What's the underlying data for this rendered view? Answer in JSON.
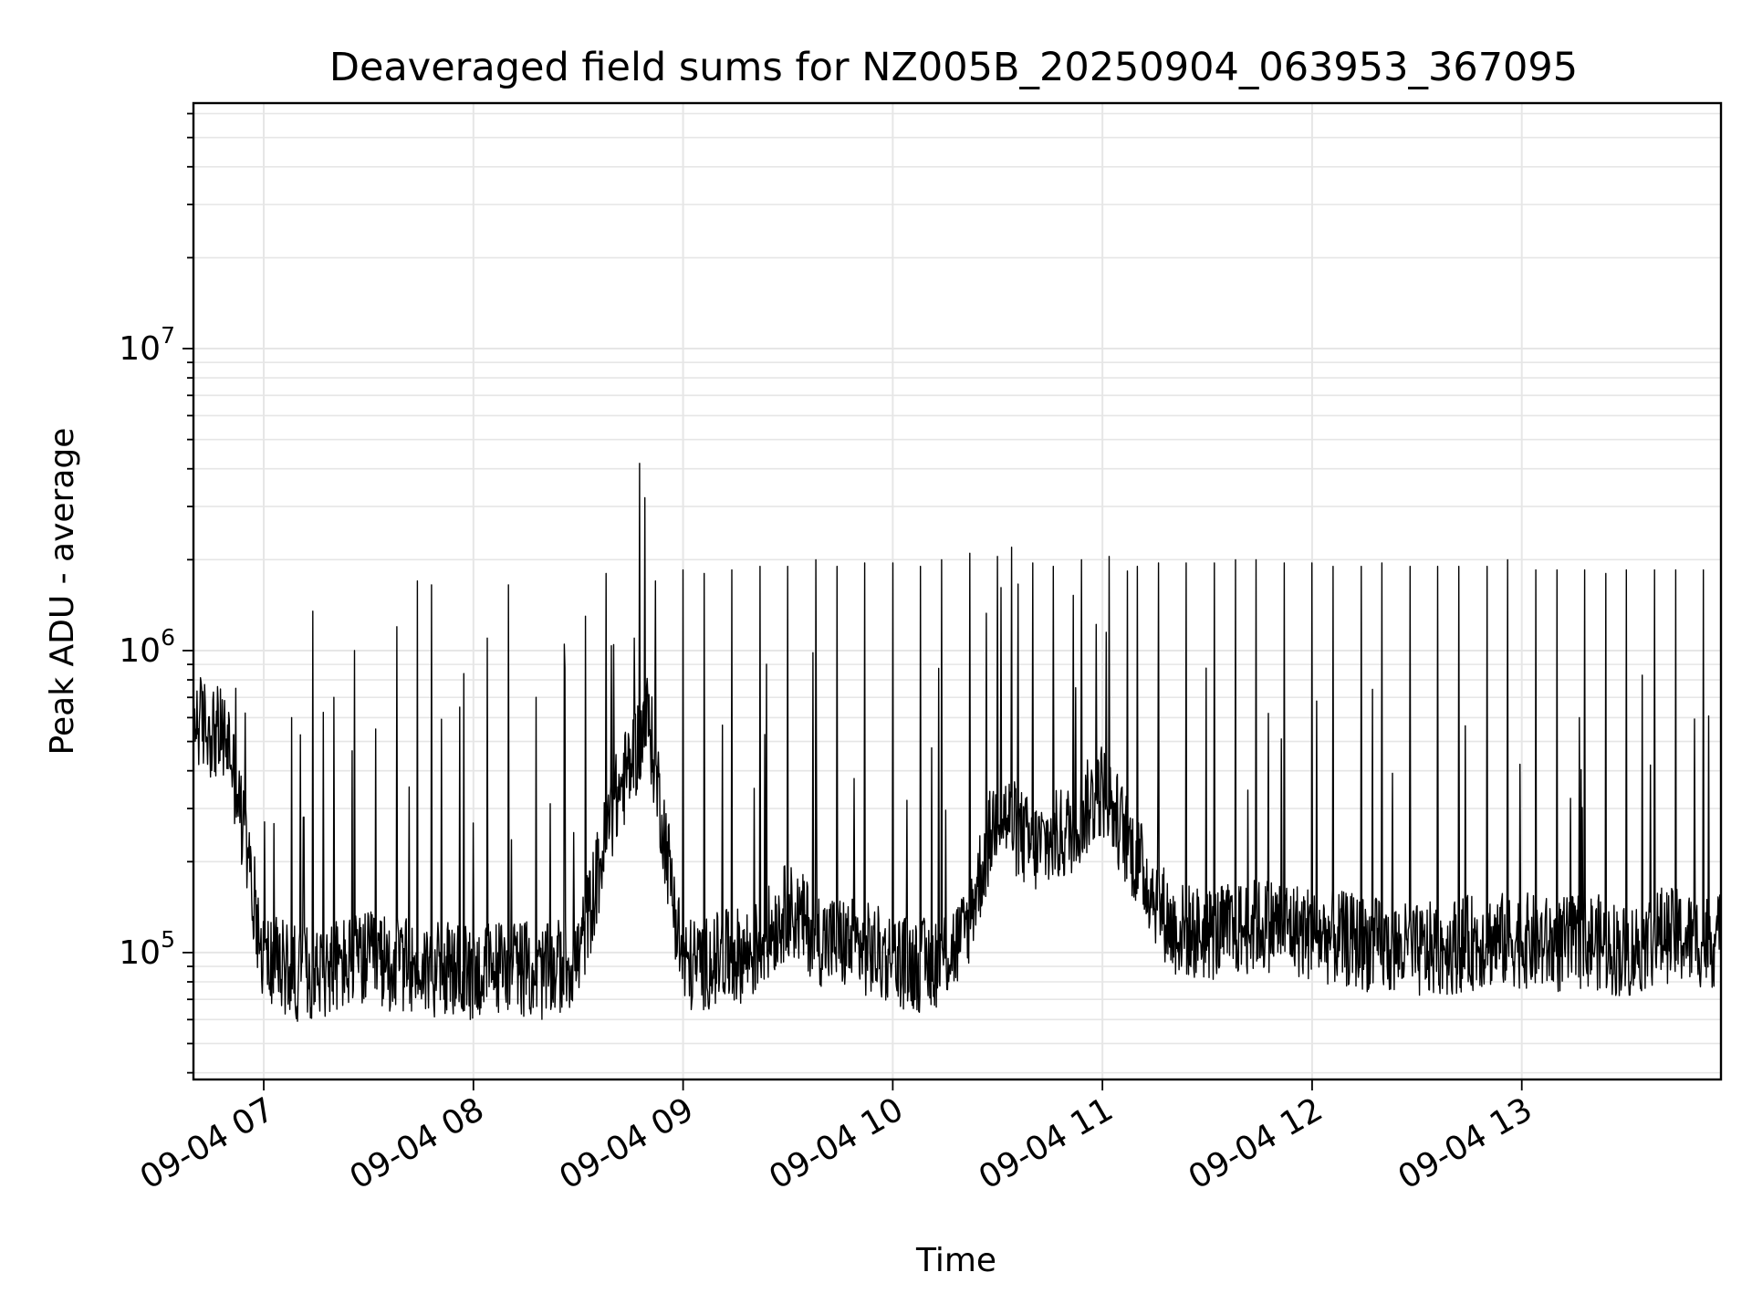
{
  "chart_data": {
    "type": "line",
    "title": "Deaveraged field sums for NZ005B_20250904_063953_367095",
    "xlabel": "Time",
    "ylabel": "Peak ADU - average",
    "y_scale": "log",
    "ylim": [
      38000,
      65000000
    ],
    "xlim": [
      "2025-09-04 06:39:53",
      "2025-09-04 13:57:00"
    ],
    "grid": true,
    "line_color": "#000000",
    "grid_color": "#e6e6e6",
    "x_ticks": [
      {
        "value": "2025-09-04 07:00",
        "label": "09-04 07"
      },
      {
        "value": "2025-09-04 08:00",
        "label": "09-04 08"
      },
      {
        "value": "2025-09-04 09:00",
        "label": "09-04 09"
      },
      {
        "value": "2025-09-04 10:00",
        "label": "09-04 10"
      },
      {
        "value": "2025-09-04 11:00",
        "label": "09-04 11"
      },
      {
        "value": "2025-09-04 12:00",
        "label": "09-04 12"
      },
      {
        "value": "2025-09-04 13:00",
        "label": "09-04 13"
      }
    ],
    "y_ticks": [
      {
        "value": 100000,
        "base": "10",
        "exp": "5"
      },
      {
        "value": 1000000,
        "base": "10",
        "exp": "6"
      },
      {
        "value": 10000000,
        "base": "10",
        "exp": "7"
      }
    ],
    "series": [
      {
        "x": [
          "2025-09-04 06:40",
          "2025-09-04 06:50",
          "2025-09-04 07:00",
          "2025-09-04 07:10",
          "2025-09-04 07:20",
          "2025-09-04 07:30",
          "2025-09-04 07:40",
          "2025-09-04 07:50",
          "2025-09-04 08:00",
          "2025-09-04 08:10",
          "2025-09-04 08:20",
          "2025-09-04 08:30",
          "2025-09-04 08:40",
          "2025-09-04 08:50",
          "2025-09-04 09:00",
          "2025-09-04 09:10",
          "2025-09-04 09:20",
          "2025-09-04 09:30",
          "2025-09-04 09:40",
          "2025-09-04 09:50",
          "2025-09-04 10:00",
          "2025-09-04 10:10",
          "2025-09-04 10:20",
          "2025-09-04 10:30",
          "2025-09-04 10:40",
          "2025-09-04 10:50",
          "2025-09-04 11:00",
          "2025-09-04 11:10",
          "2025-09-04 11:20",
          "2025-09-04 11:30",
          "2025-09-04 11:40",
          "2025-09-04 11:50",
          "2025-09-04 12:00",
          "2025-09-04 12:10",
          "2025-09-04 12:20",
          "2025-09-04 12:30",
          "2025-09-04 12:40",
          "2025-09-04 12:50",
          "2025-09-04 13:00",
          "2025-09-04 13:10",
          "2025-09-04 13:20",
          "2025-09-04 13:30",
          "2025-09-04 13:40",
          "2025-09-04 13:50"
        ],
        "values": [
          600000,
          500000,
          95000,
          85000,
          90000,
          95000,
          90000,
          88000,
          85000,
          92000,
          85000,
          95000,
          300000,
          600000,
          90000,
          95000,
          100000,
          140000,
          110000,
          105000,
          95000,
          90000,
          110000,
          300000,
          220000,
          250000,
          350000,
          200000,
          120000,
          115000,
          120000,
          125000,
          115000,
          110000,
          105000,
          100000,
          105000,
          110000,
          110000,
          105000,
          110000,
          100000,
          115000,
          110000
        ],
        "spikes": [
          [
            "2025-09-04 06:52",
            750000
          ],
          [
            "2025-09-04 07:08",
            600000
          ],
          [
            "2025-09-04 07:14",
            1350000
          ],
          [
            "2025-09-04 07:20",
            700000
          ],
          [
            "2025-09-04 07:26",
            1000000
          ],
          [
            "2025-09-04 07:32",
            550000
          ],
          [
            "2025-09-04 07:38",
            1200000
          ],
          [
            "2025-09-04 07:44",
            1700000
          ],
          [
            "2025-09-04 07:48",
            1650000
          ],
          [
            "2025-09-04 07:56",
            650000
          ],
          [
            "2025-09-04 08:04",
            1100000
          ],
          [
            "2025-09-04 08:10",
            1650000
          ],
          [
            "2025-09-04 08:18",
            700000
          ],
          [
            "2025-09-04 08:26",
            1050000
          ],
          [
            "2025-09-04 08:32",
            1300000
          ],
          [
            "2025-09-04 08:38",
            1800000
          ],
          [
            "2025-09-04 08:46",
            1100000
          ],
          [
            "2025-09-04 08:52",
            1700000
          ],
          [
            "2025-09-04 09:00",
            1850000
          ],
          [
            "2025-09-04 09:06",
            1800000
          ],
          [
            "2025-09-04 09:14",
            1850000
          ],
          [
            "2025-09-04 09:22",
            1900000
          ],
          [
            "2025-09-04 09:30",
            1900000
          ],
          [
            "2025-09-04 09:38",
            2000000
          ],
          [
            "2025-09-04 09:44",
            1900000
          ],
          [
            "2025-09-04 09:52",
            1950000
          ],
          [
            "2025-09-04 10:00",
            1950000
          ],
          [
            "2025-09-04 10:08",
            1900000
          ],
          [
            "2025-09-04 10:14",
            2000000
          ],
          [
            "2025-09-04 10:22",
            2100000
          ],
          [
            "2025-09-04 10:30",
            2050000
          ],
          [
            "2025-09-04 10:34",
            2200000
          ],
          [
            "2025-09-04 10:40",
            1950000
          ],
          [
            "2025-09-04 10:46",
            1900000
          ],
          [
            "2025-09-04 10:54",
            2000000
          ],
          [
            "2025-09-04 11:02",
            2050000
          ],
          [
            "2025-09-04 11:10",
            1900000
          ],
          [
            "2025-09-04 11:16",
            1950000
          ],
          [
            "2025-09-04 11:24",
            1950000
          ],
          [
            "2025-09-04 11:32",
            1950000
          ],
          [
            "2025-09-04 11:38",
            2000000
          ],
          [
            "2025-09-04 11:44",
            2000000
          ],
          [
            "2025-09-04 11:52",
            1950000
          ],
          [
            "2025-09-04 12:00",
            1950000
          ],
          [
            "2025-09-04 12:06",
            1900000
          ],
          [
            "2025-09-04 12:14",
            1900000
          ],
          [
            "2025-09-04 12:20",
            1950000
          ],
          [
            "2025-09-04 12:28",
            1900000
          ],
          [
            "2025-09-04 12:36",
            1900000
          ],
          [
            "2025-09-04 12:42",
            1900000
          ],
          [
            "2025-09-04 12:50",
            1900000
          ],
          [
            "2025-09-04 12:56",
            2000000
          ],
          [
            "2025-09-04 13:04",
            1850000
          ],
          [
            "2025-09-04 13:10",
            1850000
          ],
          [
            "2025-09-04 13:18",
            1850000
          ],
          [
            "2025-09-04 13:24",
            1800000
          ],
          [
            "2025-09-04 13:30",
            1850000
          ],
          [
            "2025-09-04 13:38",
            1850000
          ],
          [
            "2025-09-04 13:44",
            1850000
          ],
          [
            "2025-09-04 13:52",
            1850000
          ]
        ]
      }
    ]
  }
}
